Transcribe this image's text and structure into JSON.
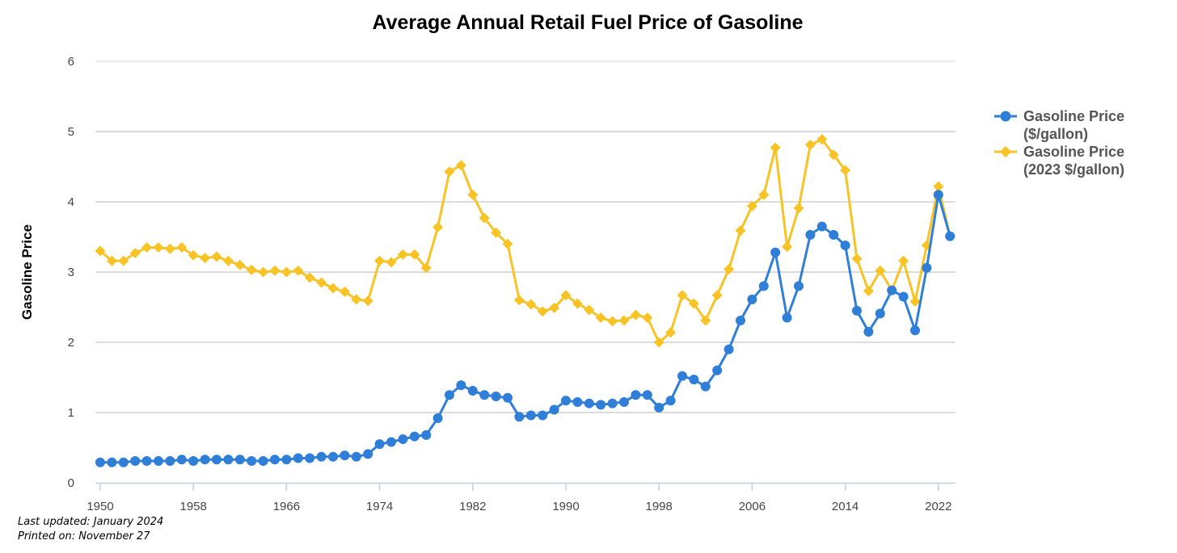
{
  "chart_data": {
    "type": "line",
    "title": "Average Annual Retail Fuel Price of Gasoline",
    "xlabel": "",
    "ylabel": "Gasoline Price",
    "ylim": [
      0,
      6
    ],
    "yticks": [
      0,
      1,
      2,
      3,
      4,
      5,
      6
    ],
    "xticks": [
      1950,
      1958,
      1966,
      1974,
      1982,
      1990,
      1998,
      2006,
      2014,
      2022
    ],
    "legend_position": "right",
    "grid": true,
    "x": [
      1950,
      1951,
      1952,
      1953,
      1954,
      1955,
      1956,
      1957,
      1958,
      1959,
      1960,
      1961,
      1962,
      1963,
      1964,
      1965,
      1966,
      1967,
      1968,
      1969,
      1970,
      1971,
      1972,
      1973,
      1974,
      1975,
      1976,
      1977,
      1978,
      1979,
      1980,
      1981,
      1982,
      1983,
      1984,
      1985,
      1986,
      1987,
      1988,
      1989,
      1990,
      1991,
      1992,
      1993,
      1994,
      1995,
      1996,
      1997,
      1998,
      1999,
      2000,
      2001,
      2002,
      2003,
      2004,
      2005,
      2006,
      2007,
      2008,
      2009,
      2010,
      2011,
      2012,
      2013,
      2014,
      2015,
      2016,
      2017,
      2018,
      2019,
      2020,
      2021,
      2022,
      2023
    ],
    "series": [
      {
        "name": "Gasoline Price ($/gallon)",
        "legend_lines": [
          "Gasoline Price",
          "($/gallon)"
        ],
        "color": "#2f7ed8",
        "marker": "circle",
        "values": [
          0.29,
          0.29,
          0.29,
          0.31,
          0.31,
          0.31,
          0.31,
          0.33,
          0.31,
          0.33,
          0.33,
          0.33,
          0.33,
          0.31,
          0.31,
          0.33,
          0.33,
          0.35,
          0.35,
          0.37,
          0.37,
          0.39,
          0.37,
          0.41,
          0.55,
          0.58,
          0.62,
          0.66,
          0.68,
          0.92,
          1.25,
          1.39,
          1.31,
          1.25,
          1.23,
          1.21,
          0.94,
          0.96,
          0.96,
          1.04,
          1.17,
          1.15,
          1.13,
          1.11,
          1.13,
          1.15,
          1.25,
          1.25,
          1.07,
          1.17,
          1.52,
          1.47,
          1.37,
          1.6,
          1.9,
          2.31,
          2.61,
          2.8,
          3.28,
          2.35,
          2.8,
          3.53,
          3.65,
          3.53,
          3.38,
          2.45,
          2.15,
          2.41,
          2.74,
          2.65,
          2.17,
          3.06,
          4.1,
          3.51
        ]
      },
      {
        "name": "Gasoline Price (2023 $/gallon)",
        "legend_lines": [
          "Gasoline Price",
          "(2023 $/gallon)"
        ],
        "color": "#f7c325",
        "marker": "diamond",
        "values": [
          3.3,
          3.16,
          3.16,
          3.27,
          3.35,
          3.35,
          3.33,
          3.35,
          3.24,
          3.2,
          3.22,
          3.16,
          3.1,
          3.03,
          3.0,
          3.02,
          3.0,
          3.02,
          2.92,
          2.85,
          2.77,
          2.72,
          2.61,
          2.59,
          3.16,
          3.14,
          3.25,
          3.25,
          3.06,
          3.64,
          4.43,
          4.52,
          4.1,
          3.77,
          3.56,
          3.4,
          2.6,
          2.54,
          2.44,
          2.49,
          2.67,
          2.55,
          2.46,
          2.35,
          2.3,
          2.31,
          2.39,
          2.35,
          2.0,
          2.14,
          2.67,
          2.55,
          2.31,
          2.67,
          3.04,
          3.59,
          3.94,
          4.1,
          4.77,
          3.36,
          3.91,
          4.81,
          4.89,
          4.67,
          4.45,
          3.19,
          2.73,
          3.02,
          2.74,
          3.16,
          2.58,
          3.38,
          4.22,
          3.51
        ]
      }
    ]
  },
  "footer": {
    "last_updated": "Last updated: January 2024",
    "printed_on": "Printed on: November 27"
  }
}
